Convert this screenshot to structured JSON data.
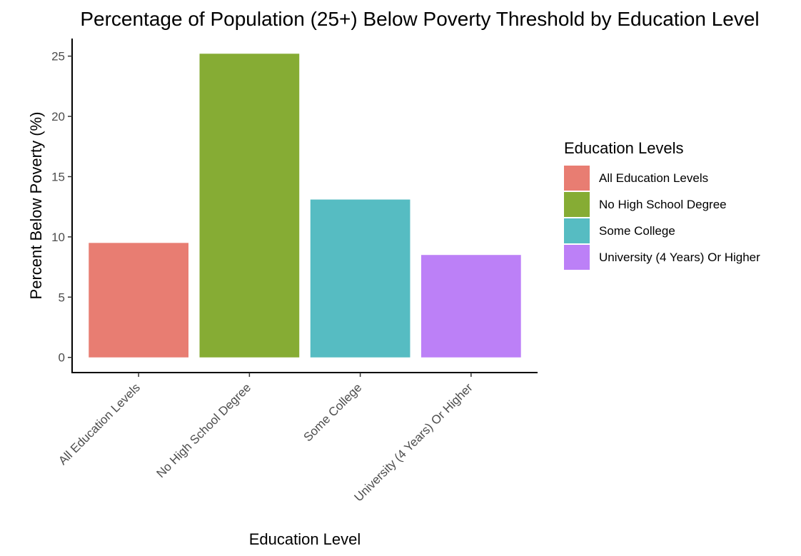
{
  "chart_data": {
    "type": "bar",
    "title": "Percentage of Population (25+) Below Poverty Threshold by Education Level",
    "xlabel": "Education Level",
    "ylabel": "Percent Below Poverty (%)",
    "categories": [
      "All Education Levels",
      "No High School Degree",
      "Some College",
      "University (4 Years) Or Higher"
    ],
    "values": [
      9.5,
      25.2,
      13.1,
      8.5
    ],
    "colors": [
      "#E87D72",
      "#86AC34",
      "#56BCC2",
      "#BC80F7"
    ],
    "yticks": [
      0,
      5,
      10,
      15,
      20,
      25
    ],
    "ylim": [
      -1.26,
      26.46
    ],
    "grid": false,
    "legend": {
      "title": "Education Levels",
      "position": "right",
      "entries": [
        "All Education Levels",
        "No High School Degree",
        "Some College",
        "University (4 Years) Or Higher"
      ]
    }
  }
}
